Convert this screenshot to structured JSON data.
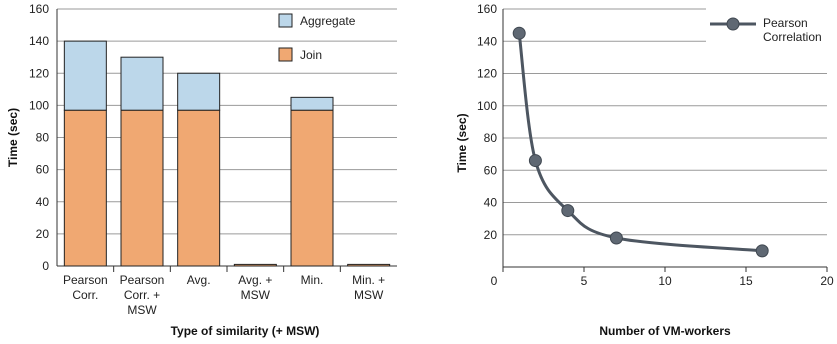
{
  "chart_data": [
    {
      "type": "bar",
      "stacked": true,
      "xlabel": "Type of similarity (+ MSW)",
      "ylabel": "Time (sec)",
      "ylim": [
        0,
        160
      ],
      "yticks": [
        0,
        20,
        40,
        60,
        80,
        100,
        120,
        140,
        160
      ],
      "grid": true,
      "legend_position": "top-right",
      "categories": [
        [
          "Pearson",
          "Corr."
        ],
        [
          "Pearson",
          "Corr. +",
          "MSW"
        ],
        [
          "Avg."
        ],
        [
          "Avg. +",
          "MSW"
        ],
        [
          "Min."
        ],
        [
          "Min. +",
          "MSW"
        ]
      ],
      "series": [
        {
          "name": "Join",
          "color": "#f0a872",
          "values": [
            97,
            97,
            97,
            1,
            97,
            1
          ]
        },
        {
          "name": "Aggregate",
          "color": "#bcd7ea",
          "values": [
            43,
            33,
            23,
            0,
            8,
            0
          ]
        }
      ]
    },
    {
      "type": "line",
      "smooth": true,
      "xlabel": "Number of VM-workers",
      "ylabel": "Time (sec)",
      "xlim": [
        0,
        20
      ],
      "ylim": [
        0,
        160
      ],
      "xticks": [
        0,
        5,
        10,
        15,
        20
      ],
      "yticks": [
        20,
        40,
        60,
        80,
        100,
        120,
        140,
        160
      ],
      "grid": true,
      "legend_position": "top-right",
      "series": [
        {
          "name": [
            "Pearson",
            "Correlation"
          ],
          "color": "#4d5661",
          "x": [
            1,
            2,
            4,
            7,
            16
          ],
          "y": [
            145,
            66,
            35,
            18,
            10
          ]
        }
      ]
    }
  ]
}
